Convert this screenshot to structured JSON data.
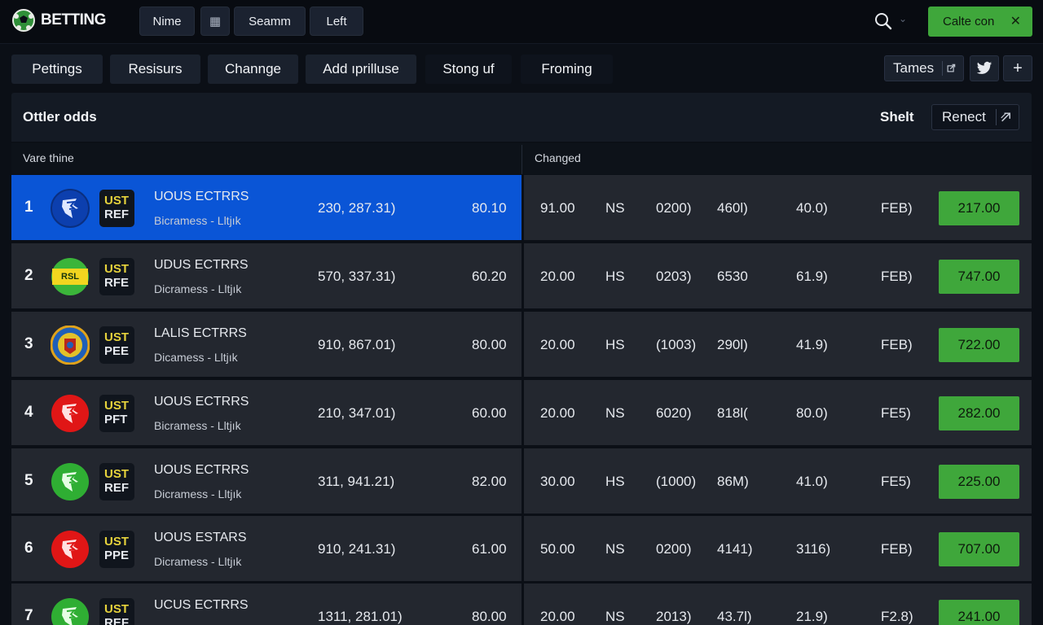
{
  "app": {
    "brand": "BETTING"
  },
  "topbar": {
    "buttons": [
      {
        "label": "Nime"
      },
      {
        "label": "▦"
      },
      {
        "label": "Seamm"
      },
      {
        "label": "Left"
      }
    ],
    "search_icon": "search-icon",
    "cta_label": "Calte con",
    "cta_close": "✕",
    "colors": {
      "accent": "#3fa73b",
      "selected": "#0a55d6"
    }
  },
  "nav": {
    "items": [
      {
        "label": "Pettings"
      },
      {
        "label": "Resisurs"
      },
      {
        "label": "Channge"
      },
      {
        "label": "Add ıprilluse"
      },
      {
        "label": "Stong uf"
      },
      {
        "label": "Froming"
      }
    ],
    "tames_label": "Tames",
    "plus_label": "+"
  },
  "panel": {
    "title": "Ottler odds",
    "shelt_label": "Shelt",
    "renect_label": "Renect"
  },
  "columns": {
    "left_header": "Vare thine",
    "right_header": "Changed"
  },
  "rows": [
    {
      "rank": "1",
      "badge_top": "UST",
      "badge_bottom": "REF",
      "name": "UOUS ECTRRS",
      "sub": "Bicramess - Lltjık",
      "coords": "230, 287.31)",
      "odds": "80.10",
      "c1": "91.00",
      "c2": "NS",
      "c3": "0200)",
      "c4": "460l)",
      "c5": "40.0)",
      "c6": "FEB)",
      "price": "217.00",
      "logo": "blue"
    },
    {
      "rank": "2",
      "badge_top": "UST",
      "badge_bottom": "RFE",
      "name": "UDUS ECTRRS",
      "sub": "Dicramess - Lltjık",
      "coords": "570, 337.31)",
      "odds": "60.20",
      "c1": "20.00",
      "c2": "HS",
      "c3": "0203)",
      "c4": "6530",
      "c5": "61.9)",
      "c6": "FEB)",
      "price": "747.00",
      "logo": "yellowgreen"
    },
    {
      "rank": "3",
      "badge_top": "UST",
      "badge_bottom": "PEE",
      "name": "LALIS ECTRRS",
      "sub": "Dicamess - Lltjık",
      "coords": "910, 867.01)",
      "odds": "80.00",
      "c1": "20.00",
      "c2": "HS",
      "c3": "(1003)",
      "c4": "290l)",
      "c5": "41.9)",
      "c6": "FEB)",
      "price": "722.00",
      "logo": "crest"
    },
    {
      "rank": "4",
      "badge_top": "UST",
      "badge_bottom": "PFT",
      "name": "UOUS ECTRRS",
      "sub": "Bicramess - Lltjık",
      "coords": "210, 347.01)",
      "odds": "60.00",
      "c1": "20.00",
      "c2": "NS",
      "c3": "6020)",
      "c4": "818l(",
      "c5": "80.0)",
      "c6": "FE5)",
      "price": "282.00",
      "logo": "red"
    },
    {
      "rank": "5",
      "badge_top": "UST",
      "badge_bottom": "REF",
      "name": "UOUS ECTRRS",
      "sub": "Dicramess - Lltjık",
      "coords": "311, 941.21)",
      "odds": "82.00",
      "c1": "30.00",
      "c2": "HS",
      "c3": "(1000)",
      "c4": "86M)",
      "c5": "41.0)",
      "c6": "FE5)",
      "price": "225.00",
      "logo": "green"
    },
    {
      "rank": "6",
      "badge_top": "UST",
      "badge_bottom": "PPE",
      "name": "UOUS ESTARS",
      "sub": "Dicramess - Lltjık",
      "coords": "910, 241.31)",
      "odds": "61.00",
      "c1": "50.00",
      "c2": "NS",
      "c3": "0200)",
      "c4": "4141)",
      "c5": "3116)",
      "c6": "FEB)",
      "price": "707.00",
      "logo": "red"
    },
    {
      "rank": "7",
      "badge_top": "UST",
      "badge_bottom": "REF",
      "name": "UCUS ECTRRS",
      "sub": "",
      "coords": "1311, 281.01)",
      "odds": "80.00",
      "c1": "20.00",
      "c2": "NS",
      "c3": "2013)",
      "c4": "43.7l)",
      "c5": "21.9)",
      "c6": "F2.8)",
      "price": "241.00",
      "logo": "green"
    }
  ]
}
